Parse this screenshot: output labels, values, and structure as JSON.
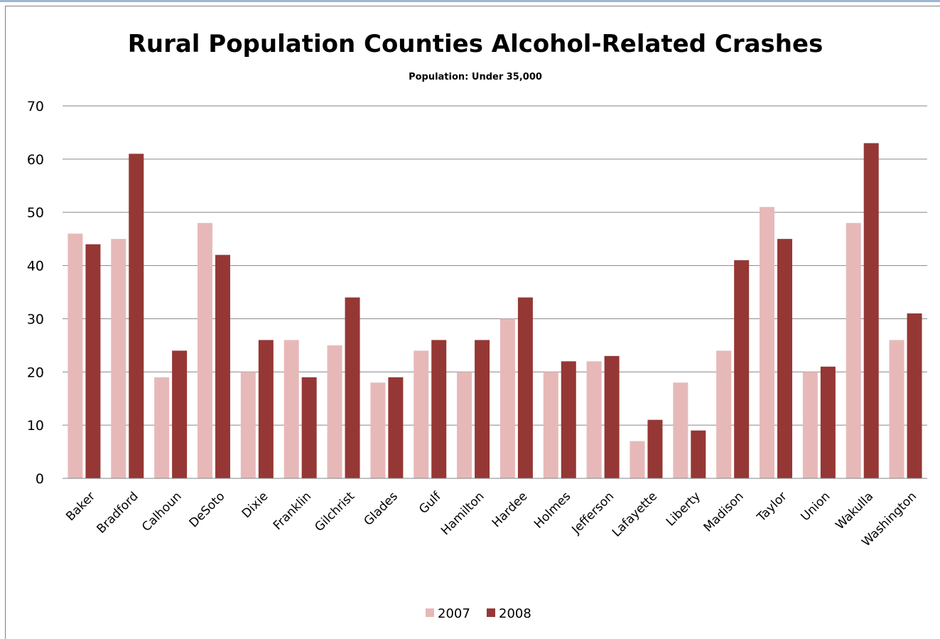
{
  "chart_data": {
    "type": "bar",
    "title": "Rural Population Counties Alcohol-Related Crashes",
    "subtitle": "Population:  Under 35,000",
    "xlabel": "",
    "ylabel": "",
    "ylim": [
      0,
      70
    ],
    "yticks": [
      "0",
      "10",
      "20",
      "30",
      "40",
      "50",
      "60",
      "70"
    ],
    "grid": true,
    "legend_position": "bottom",
    "categories": [
      "Baker",
      "Bradford",
      "Calhoun",
      "DeSoto",
      "Dixie",
      "Franklin",
      "Gilchrist",
      "Glades",
      "Gulf",
      "Hamilton",
      "Hardee",
      "Holmes",
      "Jefferson",
      "Lafayette",
      "Liberty",
      "Madison",
      "Taylor",
      "Union",
      "Wakulla",
      "Washington"
    ],
    "series": [
      {
        "name": "2007",
        "color": "#e6b9b8",
        "values": [
          46,
          45,
          19,
          48,
          20,
          26,
          25,
          18,
          24,
          20,
          30,
          20,
          22,
          7,
          18,
          24,
          51,
          20,
          48,
          26
        ]
      },
      {
        "name": "2008",
        "color": "#953735",
        "values": [
          44,
          61,
          24,
          42,
          26,
          19,
          34,
          19,
          26,
          26,
          34,
          22,
          23,
          11,
          9,
          41,
          45,
          21,
          63,
          31
        ]
      }
    ]
  }
}
